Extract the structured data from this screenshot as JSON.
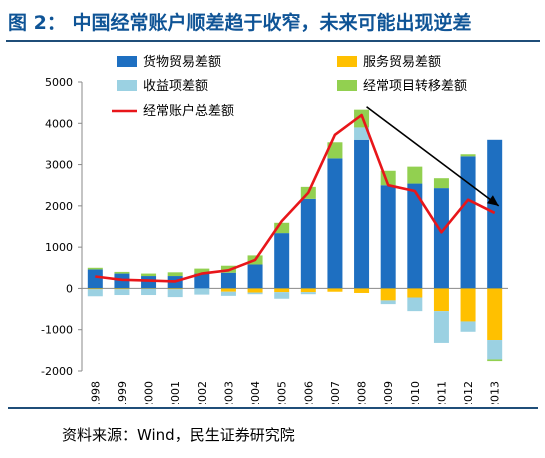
{
  "title": "图 2：  中国经常账户顺差趋于收窄，未来可能出现逆差",
  "source": "资料来源：Wind，民生证券研究院",
  "chart_data": {
    "type": "bar",
    "stacked": true,
    "categories": [
      "1998",
      "1999",
      "2000",
      "2001",
      "2002",
      "2003",
      "2004",
      "2005",
      "2006",
      "2007",
      "2008",
      "2009",
      "2010",
      "2011",
      "2012",
      "2013"
    ],
    "ylim": [
      -2000,
      5000
    ],
    "yticks": [
      -2000,
      -1000,
      0,
      1000,
      2000,
      3000,
      4000,
      5000
    ],
    "series": [
      {
        "name": "货物贸易差额",
        "kind": "bar",
        "color": "#1e6fc1",
        "values": [
          460,
          360,
          300,
          300,
          360,
          380,
          580,
          1340,
          2170,
          3150,
          3600,
          2500,
          2540,
          2430,
          3200,
          3600
        ]
      },
      {
        "name": "服务贸易差额",
        "kind": "bar",
        "color": "#ffc000",
        "values": [
          -20,
          -20,
          -10,
          -20,
          0,
          -80,
          -100,
          -90,
          -90,
          -80,
          -110,
          -290,
          -220,
          -550,
          -800,
          -1250
        ]
      },
      {
        "name": "收益项差额",
        "kind": "bar",
        "color": "#9bd1e2",
        "values": [
          -170,
          -140,
          -150,
          -190,
          -150,
          -100,
          -40,
          -160,
          -50,
          0,
          300,
          -90,
          -330,
          -770,
          -250,
          -470
        ]
      },
      {
        "name": "经常项目转移差额",
        "kind": "bar",
        "color": "#92d050",
        "values": [
          40,
          40,
          60,
          90,
          120,
          170,
          220,
          250,
          290,
          390,
          430,
          350,
          410,
          240,
          50,
          -40
        ]
      },
      {
        "name": "经常账户总差额",
        "kind": "line",
        "color": "#e8161a",
        "values": [
          290,
          210,
          190,
          170,
          360,
          440,
          690,
          1630,
          2320,
          3720,
          4200,
          2500,
          2360,
          1360,
          2150,
          1830
        ]
      }
    ],
    "legend_position": "top",
    "annotation": "arrow from 2008 peak down-right to 2013"
  }
}
